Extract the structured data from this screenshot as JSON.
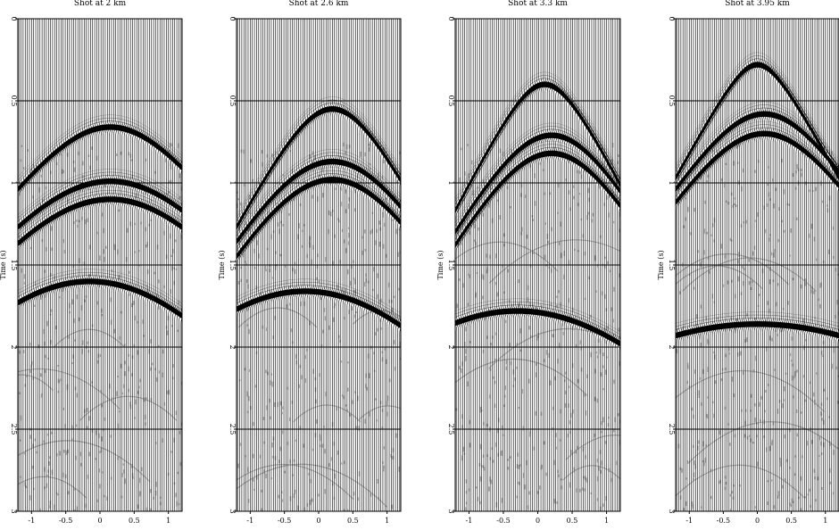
{
  "figure": {
    "panel_count": 4,
    "trace_color": "#000000",
    "shadow_color": "#7f7f7f"
  },
  "chart_data": [
    {
      "type": "seismic-gather",
      "title": "Shot at 2 km",
      "xlabel": "",
      "ylabel": "Time (s)",
      "xlim": [
        -1.2,
        1.2
      ],
      "ylim": [
        0,
        3
      ],
      "x_ticks": [
        "-1",
        "-0.5",
        "0",
        "0.5",
        "1"
      ],
      "y_ticks": [
        "0",
        "0.5",
        "1",
        "1.5",
        "2",
        "2.5",
        "3"
      ],
      "gridlines_y": [
        0.5,
        1,
        1.5,
        2,
        2.5
      ],
      "events": [
        {
          "apex_x": 0.15,
          "apex_t": 0.66,
          "t_at_edge": 1.04
        },
        {
          "apex_x": 0.15,
          "apex_t": 0.99,
          "t_at_edge": 1.27
        },
        {
          "apex_x": 0.15,
          "apex_t": 1.1,
          "t_at_edge": 1.37
        },
        {
          "apex_x": -0.15,
          "apex_t": 1.6,
          "t_at_edge": 1.81
        }
      ]
    },
    {
      "type": "seismic-gather",
      "title": "Shot at 2.6 km",
      "xlabel": "",
      "ylabel": "Time (s)",
      "xlim": [
        -1.2,
        1.2
      ],
      "ylim": [
        0,
        3
      ],
      "x_ticks": [
        "-1",
        "-0.5",
        "0",
        "0.5",
        "1"
      ],
      "y_ticks": [
        "0",
        "0.5",
        "1",
        "1.5",
        "2",
        "2.5",
        "3"
      ],
      "gridlines_y": [
        0.5,
        1,
        1.5,
        2,
        2.5
      ],
      "events": [
        {
          "apex_x": 0.2,
          "apex_t": 0.55,
          "t_at_edge": 1.27
        },
        {
          "apex_x": 0.2,
          "apex_t": 0.87,
          "t_at_edge": 1.36
        },
        {
          "apex_x": 0.2,
          "apex_t": 0.98,
          "t_at_edge": 1.45
        },
        {
          "apex_x": -0.2,
          "apex_t": 1.66,
          "t_at_edge": 1.87
        }
      ]
    },
    {
      "type": "seismic-gather",
      "title": "Shot at 3.3 km",
      "xlabel": "",
      "ylabel": "Time (s)",
      "xlim": [
        -1.2,
        1.2
      ],
      "ylim": [
        0,
        3
      ],
      "x_ticks": [
        "-1",
        "-0.5",
        "0",
        "0.5",
        "1"
      ],
      "y_ticks": [
        "0",
        "0.5",
        "1",
        "1.5",
        "2",
        "2.5",
        "3"
      ],
      "gridlines_y": [
        0.5,
        1,
        1.5,
        2,
        2.5
      ],
      "events": [
        {
          "apex_x": 0.1,
          "apex_t": 0.4,
          "t_at_edge": 1.17
        },
        {
          "apex_x": 0.2,
          "apex_t": 0.71,
          "t_at_edge": 1.3
        },
        {
          "apex_x": 0.2,
          "apex_t": 0.82,
          "t_at_edge": 1.38
        },
        {
          "apex_x": -0.3,
          "apex_t": 1.78,
          "t_at_edge": 1.98
        }
      ]
    },
    {
      "type": "seismic-gather",
      "title": "Shot at 3.95 km",
      "xlabel": "",
      "ylabel": "Time (s)",
      "xlim": [
        -1.2,
        1.2
      ],
      "ylim": [
        0,
        3
      ],
      "x_ticks": [
        "-1",
        "-0.5",
        "0",
        "0.5",
        "1"
      ],
      "y_ticks": [
        "0",
        "0.5",
        "1",
        "1.5",
        "2",
        "2.5",
        "3"
      ],
      "gridlines_y": [
        0.5,
        1,
        1.5,
        2,
        2.5
      ],
      "events": [
        {
          "apex_x": 0.0,
          "apex_t": 0.28,
          "t_at_edge": 0.97
        },
        {
          "apex_x": 0.1,
          "apex_t": 0.58,
          "t_at_edge": 1.04
        },
        {
          "apex_x": 0.1,
          "apex_t": 0.7,
          "t_at_edge": 1.12
        },
        {
          "apex_x": 0.0,
          "apex_t": 1.86,
          "t_at_edge": 1.93
        }
      ]
    }
  ]
}
